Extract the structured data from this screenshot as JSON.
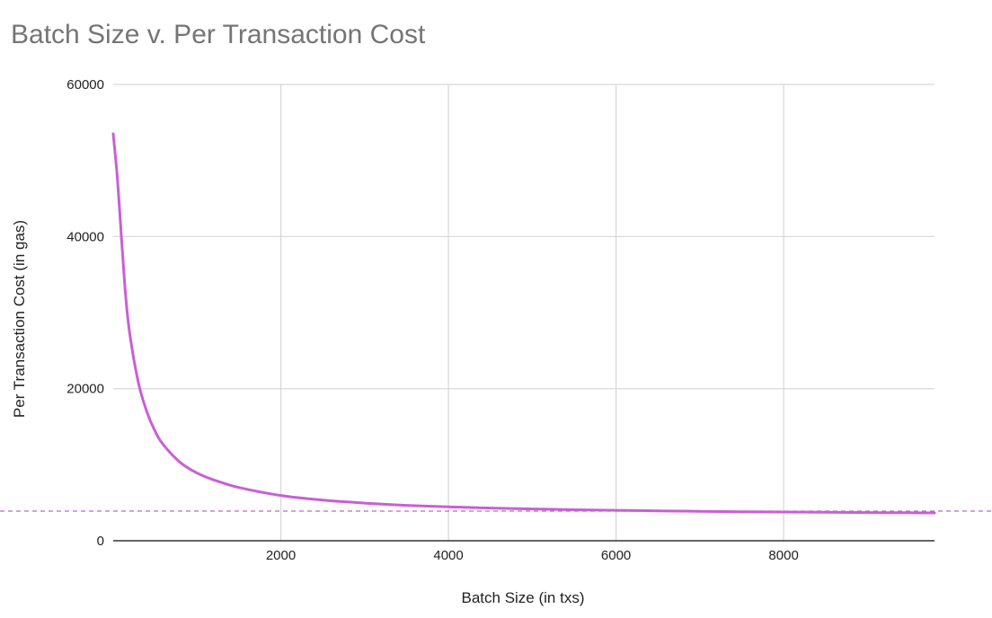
{
  "chart_data": {
    "type": "line",
    "title": "Batch Size v. Per Transaction Cost",
    "xlabel": "Batch Size (in txs)",
    "ylabel": "Per Transaction Cost (in gas)",
    "xlim": [
      0,
      9800
    ],
    "ylim": [
      0,
      60000
    ],
    "x_ticks": [
      2000,
      4000,
      6000,
      8000
    ],
    "x_tick_labels": [
      "2000",
      "4000",
      "6000",
      "8000"
    ],
    "y_ticks": [
      0,
      20000,
      40000,
      60000
    ],
    "y_tick_labels": [
      "0",
      "20000",
      "40000",
      "60000"
    ],
    "grid": true,
    "legend": "none",
    "series": [
      {
        "color": "#c95fd6",
        "x": [
          0,
          50,
          100,
          150,
          200,
          300,
          400,
          500,
          600,
          800,
          1000,
          1200,
          1500,
          2000,
          2500,
          3000,
          3500,
          4000,
          4500,
          5000,
          5500,
          6000,
          6500,
          7000,
          7500,
          8000,
          8500,
          9000,
          9500,
          9800
        ],
        "y": [
          53500,
          47600,
          39600,
          32000,
          27000,
          20800,
          17000,
          14400,
          12600,
          10300,
          8900,
          8000,
          7000,
          5950,
          5350,
          4950,
          4650,
          4450,
          4300,
          4180,
          4080,
          4000,
          3930,
          3870,
          3820,
          3780,
          3740,
          3710,
          3680,
          3660
        ]
      }
    ],
    "reference_line": {
      "y": 3900,
      "style": "dashed",
      "color": "#c95fd6"
    }
  }
}
